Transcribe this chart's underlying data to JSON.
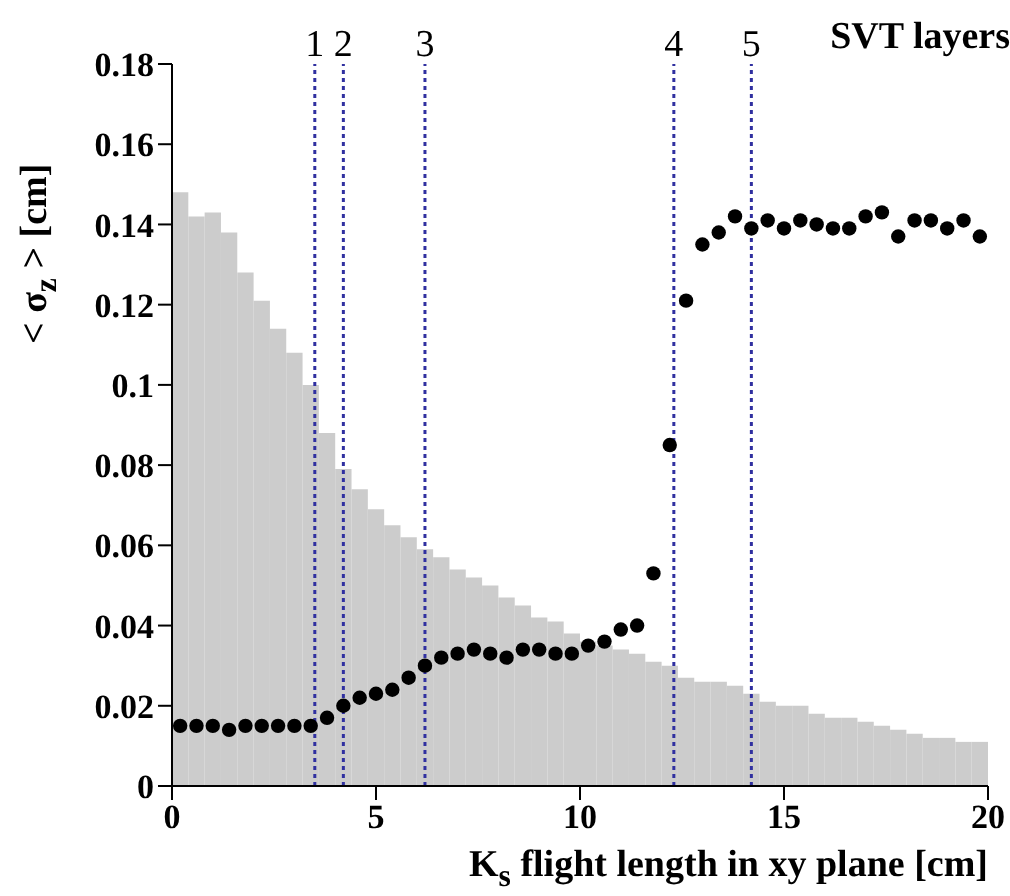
{
  "chart_data": {
    "type": "scatter",
    "xlabel": "K$_{s}$ flight length in xy plane [cm]",
    "ylabel": "< σ$_{z}$ > [cm]",
    "xlim": [
      0,
      20
    ],
    "xticks": [
      0,
      5,
      10,
      15,
      20
    ],
    "ylim": [
      0,
      0.18
    ],
    "yticks": [
      0,
      0.02,
      0.04,
      0.06,
      0.08,
      {
        "value": 0.1,
        "label": "0.1"
      },
      0.12,
      0.14,
      0.16,
      0.18
    ],
    "grid": false,
    "legend": false,
    "marker": "circle",
    "series": [
      {
        "type": "histogram",
        "color": "#cccccc",
        "bins": [
          0,
          0.4,
          0.8,
          1.2,
          1.6,
          2,
          2.4,
          2.8,
          3.2,
          3.6,
          4,
          4.4,
          4.8,
          5.2,
          5.6,
          6,
          6.4,
          6.8,
          7.2,
          7.6,
          8,
          8.4,
          8.8,
          9.2,
          9.6,
          10,
          10.4,
          10.8,
          11.2,
          11.6,
          12,
          12.4,
          12.8,
          13.2,
          13.6,
          14,
          14.4,
          14.8,
          15.2,
          15.6,
          16,
          16.4,
          16.8,
          17.2,
          17.6,
          18,
          18.4,
          18.8,
          19.2,
          19.6,
          20
        ],
        "values": [
          0.148,
          0.142,
          0.143,
          0.138,
          0.128,
          0.121,
          0.114,
          0.108,
          0.1,
          0.088,
          0.079,
          0.074,
          0.069,
          0.065,
          0.062,
          0.059,
          0.057,
          0.054,
          0.052,
          0.05,
          0.047,
          0.045,
          0.042,
          0.041,
          0.038,
          0.036,
          0.035,
          0.034,
          0.033,
          0.031,
          0.03,
          0.027,
          0.026,
          0.026,
          0.025,
          0.023,
          0.021,
          0.02,
          0.02,
          0.018,
          0.017,
          0.017,
          0.016,
          0.015,
          0.014,
          0.013,
          0.012,
          0.012,
          0.011,
          0.011
        ]
      },
      {
        "color": "#000000",
        "x": [
          0.2,
          0.6,
          1,
          1.4,
          1.8,
          2.2,
          2.6,
          3,
          3.4,
          3.8,
          4.2,
          4.6,
          5,
          5.4,
          5.8,
          6.2,
          6.6,
          7,
          7.4,
          7.8,
          8.2,
          8.6,
          9,
          9.4,
          9.8,
          10.2,
          10.6,
          11,
          11.4,
          11.8,
          12.2,
          12.6,
          13,
          13.4,
          13.8,
          14.2,
          14.6,
          15,
          15.4,
          15.8,
          16.2,
          16.6,
          17,
          17.4,
          17.8,
          18.2,
          18.6,
          19,
          19.4,
          19.8
        ],
        "values": [
          0.015,
          0.015,
          0.015,
          0.014,
          0.015,
          0.015,
          0.015,
          0.015,
          0.015,
          0.017,
          0.02,
          0.022,
          0.023,
          0.024,
          0.027,
          0.03,
          0.032,
          0.033,
          0.034,
          0.033,
          0.032,
          0.034,
          0.034,
          0.033,
          0.033,
          0.035,
          0.036,
          0.039,
          0.04,
          0.053,
          0.085,
          0.121,
          0.135,
          0.138,
          0.142,
          0.139,
          0.141,
          0.139,
          0.141,
          0.14,
          0.139,
          0.139,
          0.142,
          0.143,
          0.137,
          0.141,
          0.141,
          0.139,
          0.141,
          0.137
        ]
      }
    ],
    "ref_lines": [
      {
        "axis": "x",
        "value": 3.5,
        "color": "#3030a0",
        "line_style": "dotted"
      },
      {
        "axis": "x",
        "value": 4.2,
        "color": "#3030a0",
        "line_style": "dotted"
      },
      {
        "axis": "x",
        "value": 6.2,
        "color": "#3030a0",
        "line_style": "dotted"
      },
      {
        "axis": "x",
        "value": 12.3,
        "color": "#3030a0",
        "line_style": "dotted"
      },
      {
        "axis": "x",
        "value": 14.2,
        "color": "#3030a0",
        "line_style": "dotted"
      }
    ],
    "annotations": [
      {
        "text": "1",
        "x": 3.5,
        "y": 0.18
      },
      {
        "text": "2",
        "x": 4.2,
        "y": 0.18
      },
      {
        "text": "3",
        "x": 6.2,
        "y": 0.18
      },
      {
        "text": "4",
        "x": 12.3,
        "y": 0.18
      },
      {
        "text": "5",
        "x": 14.2,
        "y": 0.18
      },
      "SVT layers"
    ]
  }
}
